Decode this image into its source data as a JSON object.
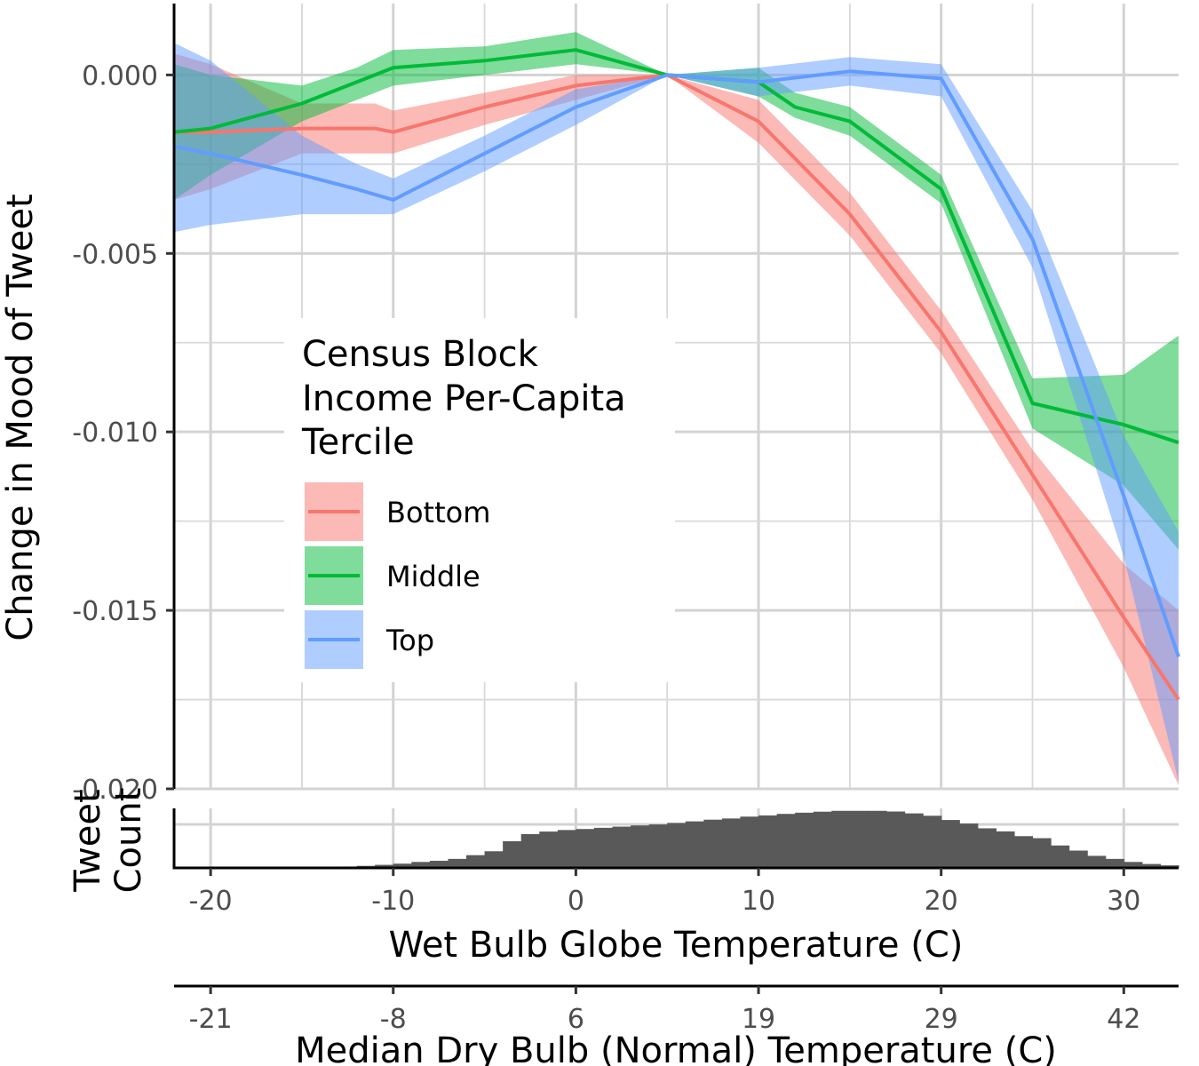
{
  "chart_data": {
    "type": "line",
    "ylabel": "Change in Mood of Tweet",
    "xlabel": "Wet Bulb Globe Temperature (C)",
    "x2label": "Median Dry Bulb (Normal) Temperature (C)",
    "hist_label": [
      "Tweet",
      "Count"
    ],
    "xlim": [
      -22,
      33
    ],
    "ylim": [
      -0.02,
      0.002
    ],
    "x_ticks": [
      -20,
      -10,
      0,
      10,
      20,
      30
    ],
    "x_tick_labels": [
      "-20",
      "-10",
      "0",
      "10",
      "20",
      "30"
    ],
    "x2_ticks": [
      -20,
      -10,
      0,
      10,
      20,
      30
    ],
    "x2_tick_labels": [
      "-21",
      "-8",
      "6",
      "19",
      "29",
      "42"
    ],
    "y_ticks": [
      0,
      -0.005,
      -0.01,
      -0.015,
      -0.02
    ],
    "y_tick_labels": [
      "0.000",
      "-0.005",
      "-0.010",
      "-0.015",
      "-0.020"
    ],
    "legend": {
      "title": [
        "Census Block",
        "Income Per-Capita",
        "Tercile"
      ],
      "position": "center-left"
    },
    "series": [
      {
        "name": "Bottom",
        "color": "#F8766D",
        "x": [
          -22,
          -20,
          -15,
          -12,
          -11,
          -10,
          -5,
          0,
          5,
          10,
          15,
          20,
          25,
          30,
          33
        ],
        "y": [
          -0.0016,
          -0.0016,
          -0.0015,
          -0.0015,
          -0.0015,
          -0.0016,
          -0.0009,
          -0.0003,
          0,
          -0.0013,
          -0.0039,
          -0.0072,
          -0.0112,
          -0.0152,
          -0.0175
        ],
        "lower": [
          -0.0035,
          -0.0032,
          -0.0022,
          -0.0022,
          -0.0022,
          -0.0022,
          -0.0014,
          -0.0007,
          0,
          -0.0019,
          -0.0045,
          -0.0078,
          -0.0119,
          -0.0166,
          -0.0199
        ],
        "upper": [
          0.0006,
          0.0003,
          -0.0008,
          -0.0008,
          -0.0008,
          -0.001,
          -0.0005,
          0,
          0,
          -0.0007,
          -0.0033,
          -0.0066,
          -0.0105,
          -0.0137,
          -0.015
        ]
      },
      {
        "name": "Middle",
        "color": "#00BA38",
        "x": [
          -22,
          -20,
          -15,
          -12,
          -10,
          -5,
          0,
          5,
          10,
          12,
          15,
          20,
          25,
          30,
          33
        ],
        "y": [
          -0.0016,
          -0.0015,
          -0.0008,
          -0.0002,
          0.0002,
          0.0004,
          0.0007,
          0,
          -0.0002,
          -0.0009,
          -0.0013,
          -0.0032,
          -0.0092,
          -0.0098,
          -0.0103
        ],
        "lower": [
          -0.0035,
          -0.0028,
          -0.0013,
          -0.0007,
          -0.0003,
          0,
          0.0003,
          0,
          -0.0006,
          -0.0012,
          -0.0017,
          -0.0036,
          -0.0099,
          -0.0115,
          -0.0133
        ],
        "upper": [
          0.0003,
          0,
          -0.0003,
          0.0002,
          0.0007,
          0.0008,
          0.0012,
          0,
          0.0002,
          -0.0005,
          -0.0009,
          -0.0028,
          -0.0085,
          -0.0084,
          -0.0073
        ]
      },
      {
        "name": "Top",
        "color": "#619CFF",
        "x": [
          -22,
          -20,
          -15,
          -12,
          -10,
          -5,
          0,
          5,
          10,
          15,
          20,
          25,
          30,
          33
        ],
        "y": [
          -0.002,
          -0.0022,
          -0.0028,
          -0.0032,
          -0.0035,
          -0.0022,
          -0.0009,
          0,
          -0.0002,
          0.0001,
          -0.0001,
          -0.0046,
          -0.0118,
          -0.0163
        ],
        "lower": [
          -0.0044,
          -0.0042,
          -0.0039,
          -0.0039,
          -0.0039,
          -0.0027,
          -0.0014,
          0,
          -0.0006,
          -0.0003,
          -0.0006,
          -0.0054,
          -0.0135,
          -0.0198
        ],
        "upper": [
          0.0009,
          0.0004,
          -0.0017,
          -0.0025,
          -0.0029,
          -0.0017,
          -0.0004,
          0,
          0.0002,
          0.0005,
          0.0003,
          -0.0038,
          -0.0101,
          -0.0128
        ]
      }
    ],
    "histogram": {
      "bin_width": 1,
      "bins_start": -22,
      "counts": [
        0,
        0,
        0,
        0,
        0,
        0,
        0,
        0.3,
        0.5,
        0.8,
        1.2,
        1.8,
        2.5,
        3.5,
        4.2,
        5.3,
        7.5,
        9.8,
        15.7,
        19.9,
        21.4,
        22.3,
        22.9,
        23.6,
        24.3,
        25.0,
        25.6,
        26.5,
        27.4,
        28.4,
        29.1,
        30.2,
        30.9,
        31.8,
        32.5,
        33.1,
        33.6,
        33.6,
        33.6,
        33.2,
        32.1,
        30.7,
        28.2,
        26.1,
        23.3,
        21.5,
        18.7,
        17.5,
        13.2,
        10.2,
        7.1,
        5.3,
        3.5,
        2.3,
        1.5,
        0.8,
        0.3
      ],
      "max": 34
    }
  }
}
